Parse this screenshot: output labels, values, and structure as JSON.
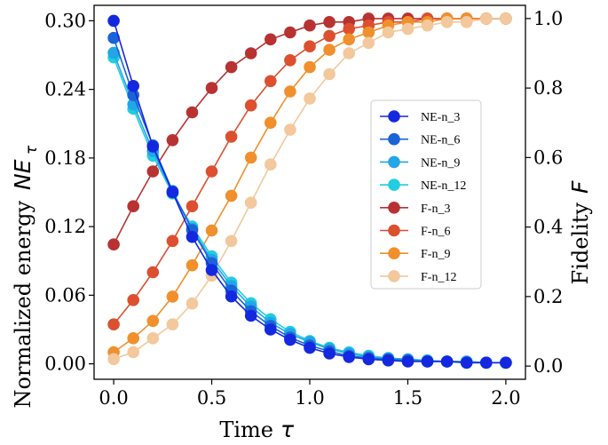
{
  "chart_data": {
    "type": "line",
    "x": [
      0.0,
      0.1,
      0.2,
      0.3,
      0.4,
      0.5,
      0.6,
      0.7,
      0.8,
      0.9,
      1.0,
      1.1,
      1.2,
      1.3,
      1.4,
      1.5,
      1.6,
      1.7,
      1.8,
      1.9,
      2.0
    ],
    "xlabel": "Time",
    "xlabel_symbol": "τ",
    "ylabel_left": "Normalized energy",
    "ylabel_left_symbol": "NE",
    "ylabel_left_subscript": "τ",
    "ylabel_right": "Fidelity",
    "ylabel_right_symbol": "F",
    "xlim": [
      -0.1,
      2.1
    ],
    "ylim_left": [
      -0.0135,
      0.3135
    ],
    "ylim_right": [
      -0.038,
      1.038
    ],
    "xticks": [
      "0.0",
      "0.5",
      "1.0",
      "1.5",
      "2.0"
    ],
    "xtick_values": [
      0.0,
      0.5,
      1.0,
      1.5,
      2.0
    ],
    "yticks_left": [
      "0.00",
      "0.06",
      "0.12",
      "0.18",
      "0.24",
      "0.30"
    ],
    "ytick_values_left": [
      0.0,
      0.06,
      0.12,
      0.18,
      0.24,
      0.3
    ],
    "yticks_right": [
      "0.0",
      "0.2",
      "0.4",
      "0.6",
      "0.8",
      "1.0"
    ],
    "ytick_values_right": [
      0.0,
      0.2,
      0.4,
      0.6,
      0.8,
      1.0
    ],
    "legend_position": "center-right",
    "series": [
      {
        "name": "NE-n_3",
        "axis": "left",
        "color": "#1428e0",
        "values": [
          0.3,
          0.243,
          0.19,
          0.15,
          0.111,
          0.082,
          0.059,
          0.042,
          0.03,
          0.021,
          0.014,
          0.009,
          0.006,
          0.004,
          0.003,
          0.002,
          0.002,
          0.002,
          0.001,
          0.001,
          0.001
        ]
      },
      {
        "name": "NE-n_6",
        "axis": "left",
        "color": "#1c63d8",
        "values": [
          0.285,
          0.235,
          0.191,
          0.151,
          0.117,
          0.088,
          0.064,
          0.046,
          0.033,
          0.023,
          0.016,
          0.011,
          0.007,
          0.005,
          0.004,
          0.003,
          0.002,
          0.002,
          0.001,
          0.001,
          0.001
        ]
      },
      {
        "name": "NE-n_9",
        "axis": "left",
        "color": "#22a6e8",
        "values": [
          0.272,
          0.227,
          0.186,
          0.15,
          0.118,
          0.091,
          0.068,
          0.05,
          0.036,
          0.026,
          0.019,
          0.013,
          0.009,
          0.006,
          0.005,
          0.004,
          0.003,
          0.002,
          0.002,
          0.001,
          0.001
        ]
      },
      {
        "name": "NE-n_12",
        "axis": "left",
        "color": "#22cde0",
        "values": [
          0.268,
          0.223,
          0.182,
          0.149,
          0.12,
          0.094,
          0.071,
          0.053,
          0.039,
          0.028,
          0.02,
          0.014,
          0.01,
          0.007,
          0.005,
          0.004,
          0.003,
          0.002,
          0.002,
          0.001,
          0.001
        ]
      },
      {
        "name": "F-n_3",
        "axis": "right",
        "color": "#b83232",
        "values": [
          0.35,
          0.46,
          0.56,
          0.65,
          0.73,
          0.8,
          0.86,
          0.9,
          0.94,
          0.96,
          0.98,
          0.99,
          0.99,
          1.0,
          1.0,
          1.0,
          1.0,
          1.0,
          1.0,
          1.0,
          1.0
        ]
      },
      {
        "name": "F-n_6",
        "axis": "right",
        "color": "#dc5030",
        "values": [
          0.12,
          0.19,
          0.27,
          0.36,
          0.46,
          0.56,
          0.66,
          0.75,
          0.82,
          0.88,
          0.92,
          0.95,
          0.97,
          0.98,
          0.99,
          0.99,
          1.0,
          1.0,
          1.0,
          1.0,
          1.0
        ]
      },
      {
        "name": "F-n_9",
        "axis": "right",
        "color": "#f0902c",
        "values": [
          0.04,
          0.08,
          0.13,
          0.2,
          0.29,
          0.39,
          0.49,
          0.6,
          0.7,
          0.79,
          0.86,
          0.91,
          0.94,
          0.96,
          0.98,
          0.99,
          0.99,
          1.0,
          1.0,
          1.0,
          1.0
        ]
      },
      {
        "name": "F-n_12",
        "axis": "right",
        "color": "#f2c89c",
        "values": [
          0.02,
          0.04,
          0.08,
          0.12,
          0.18,
          0.26,
          0.36,
          0.47,
          0.58,
          0.68,
          0.77,
          0.84,
          0.9,
          0.93,
          0.96,
          0.97,
          0.98,
          0.99,
          0.99,
          1.0,
          1.0
        ]
      }
    ]
  }
}
